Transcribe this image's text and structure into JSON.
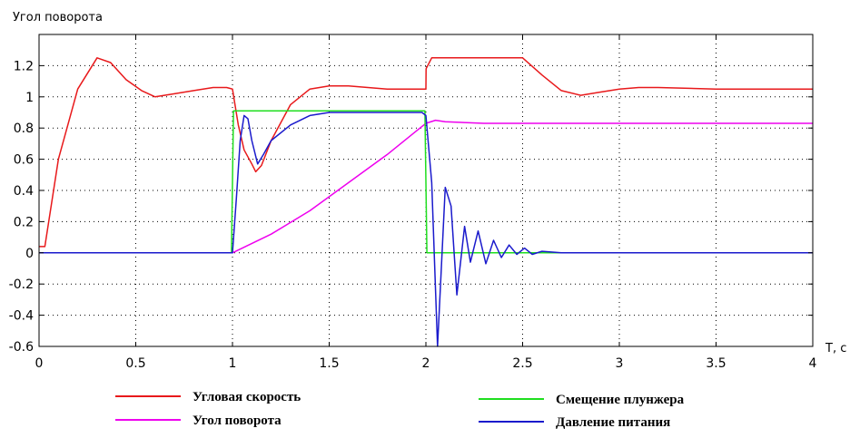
{
  "chart_data": {
    "type": "line",
    "ylabel": "Угол поворота",
    "xlabel": "T, c",
    "xlim": [
      0,
      4
    ],
    "ylim": [
      -0.6,
      1.4
    ],
    "xticks": [
      "0",
      "0.5",
      "1",
      "1.5",
      "2",
      "2.5",
      "3",
      "3.5",
      "4"
    ],
    "yticks": [
      "-0.6",
      "-0.4",
      "-0.2",
      "0",
      "0.2",
      "0.4",
      "0.6",
      "0.8",
      "1",
      "1.2"
    ],
    "grid": true,
    "legend_position": "bottom",
    "series": [
      {
        "name": "Угловая скорость",
        "color": "#e8191b",
        "x": [
          0,
          0.03,
          0.1,
          0.2,
          0.3,
          0.37,
          0.45,
          0.53,
          0.6,
          0.7,
          0.8,
          0.9,
          0.97,
          1.0,
          1.03,
          1.06,
          1.1,
          1.12,
          1.15,
          1.2,
          1.3,
          1.4,
          1.5,
          1.6,
          1.7,
          1.8,
          1.9,
          2.0,
          2.001,
          2.03,
          2.5,
          2.6,
          2.7,
          2.8,
          2.9,
          3.0,
          3.1,
          3.2,
          3.5,
          4.0
        ],
        "y": [
          0.04,
          0.04,
          0.6,
          1.05,
          1.25,
          1.22,
          1.11,
          1.04,
          1.0,
          1.02,
          1.04,
          1.06,
          1.06,
          1.05,
          0.82,
          0.66,
          0.57,
          0.52,
          0.56,
          0.72,
          0.95,
          1.05,
          1.07,
          1.07,
          1.06,
          1.05,
          1.05,
          1.05,
          1.18,
          1.25,
          1.25,
          1.14,
          1.04,
          1.01,
          1.03,
          1.05,
          1.06,
          1.06,
          1.05,
          1.05
        ]
      },
      {
        "name": "Угол поворота",
        "color": "#ee00ee",
        "x": [
          0,
          1.0,
          1.2,
          1.4,
          1.6,
          1.8,
          1.95,
          2.0,
          2.05,
          2.1,
          2.3,
          2.5,
          3.0,
          4.0
        ],
        "y": [
          0,
          0,
          0.12,
          0.27,
          0.45,
          0.63,
          0.78,
          0.83,
          0.85,
          0.84,
          0.83,
          0.83,
          0.83,
          0.83
        ]
      },
      {
        "name": "Смещение плунжера",
        "color": "#1fde1f",
        "x": [
          0,
          0.995,
          1.005,
          1.995,
          2.005,
          4.0
        ],
        "y": [
          0,
          0,
          0.91,
          0.91,
          0,
          0
        ]
      },
      {
        "name": "Давление питания",
        "color": "#1a1acc",
        "x": [
          0,
          1.0,
          1.02,
          1.04,
          1.06,
          1.08,
          1.1,
          1.13,
          1.16,
          1.2,
          1.3,
          1.4,
          1.5,
          1.7,
          1.98,
          2.0,
          2.03,
          2.06,
          2.1,
          2.13,
          2.16,
          2.2,
          2.23,
          2.27,
          2.31,
          2.35,
          2.39,
          2.43,
          2.47,
          2.51,
          2.55,
          2.6,
          2.7,
          4.0
        ],
        "y": [
          0,
          0,
          0.35,
          0.72,
          0.88,
          0.86,
          0.72,
          0.57,
          0.63,
          0.72,
          0.82,
          0.88,
          0.9,
          0.9,
          0.9,
          0.88,
          0.45,
          -0.6,
          0.42,
          0.3,
          -0.27,
          0.17,
          -0.06,
          0.14,
          -0.07,
          0.08,
          -0.03,
          0.05,
          -0.01,
          0.03,
          -0.01,
          0.01,
          0,
          0
        ]
      }
    ]
  }
}
